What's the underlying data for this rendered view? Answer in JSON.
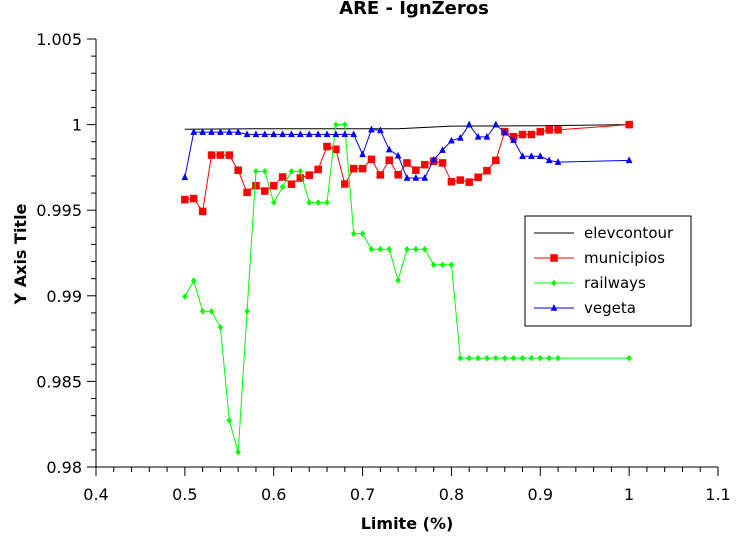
{
  "chart_data": {
    "type": "line",
    "title": "ARE - IgnZeros",
    "xlabel": "Limite (%)",
    "ylabel": "Y Axis Title",
    "xlim": [
      0.4,
      1.1
    ],
    "ylim": [
      0.98,
      1.005
    ],
    "x_ticks": [
      "0.4",
      "0.5",
      "0.6",
      "0.7",
      "0.8",
      "0.9",
      "1",
      "1.1"
    ],
    "y_ticks": [
      "0.98",
      "0.985",
      "0.99",
      "0.995",
      "1",
      "1.005"
    ],
    "grid": false,
    "legend_position": "right",
    "series": [
      {
        "name": "elevcontour",
        "color": "#000000",
        "marker": "none",
        "x": [
          0.5,
          0.58,
          0.7,
          0.74,
          0.8,
          0.9,
          1.0
        ],
        "y": [
          0.99973,
          0.99976,
          0.99976,
          0.99976,
          0.99991,
          0.99993,
          1.0
        ]
      },
      {
        "name": "municipios",
        "color": "#ff0000",
        "marker": "square",
        "x": [
          0.5,
          0.51,
          0.52,
          0.53,
          0.54,
          0.55,
          0.56,
          0.57,
          0.58,
          0.59,
          0.6,
          0.61,
          0.62,
          0.63,
          0.64,
          0.65,
          0.66,
          0.67,
          0.68,
          0.69,
          0.7,
          0.71,
          0.72,
          0.73,
          0.74,
          0.75,
          0.76,
          0.77,
          0.78,
          0.79,
          0.8,
          0.81,
          0.82,
          0.83,
          0.84,
          0.85,
          0.86,
          0.87,
          0.88,
          0.89,
          0.9,
          0.91,
          0.92,
          1.0
        ],
        "y": [
          0.99562,
          0.99568,
          0.99493,
          0.99822,
          0.99822,
          0.99822,
          0.99733,
          0.99604,
          0.99643,
          0.99612,
          0.99643,
          0.99694,
          0.99652,
          0.99688,
          0.99705,
          0.99738,
          0.99872,
          0.99856,
          0.99653,
          0.99743,
          0.99743,
          0.99797,
          0.99706,
          0.99792,
          0.99707,
          0.99776,
          0.99734,
          0.99766,
          0.99786,
          0.99776,
          0.99666,
          0.99676,
          0.99664,
          0.99692,
          0.99731,
          0.99791,
          0.99959,
          0.99929,
          0.99942,
          0.99942,
          0.99959,
          0.99969,
          0.99969,
          1.0
        ]
      },
      {
        "name": "railways",
        "color": "#00ff00",
        "marker": "diamond",
        "x": [
          0.5,
          0.51,
          0.52,
          0.53,
          0.54,
          0.55,
          0.56,
          0.57,
          0.58,
          0.59,
          0.6,
          0.61,
          0.62,
          0.63,
          0.64,
          0.65,
          0.66,
          0.67,
          0.68,
          0.69,
          0.7,
          0.71,
          0.72,
          0.73,
          0.74,
          0.75,
          0.76,
          0.77,
          0.78,
          0.79,
          0.8,
          0.81,
          0.82,
          0.83,
          0.84,
          0.85,
          0.86,
          0.87,
          0.88,
          0.89,
          0.9,
          0.91,
          0.92,
          1.0
        ],
        "y": [
          0.98996,
          0.99089,
          0.98909,
          0.98909,
          0.98816,
          0.98272,
          0.98087,
          0.9891,
          0.99727,
          0.99727,
          0.99545,
          0.99636,
          0.99727,
          0.99727,
          0.99545,
          0.99545,
          0.99545,
          1.0,
          1.0,
          0.99363,
          0.99363,
          0.99272,
          0.99272,
          0.99272,
          0.9909,
          0.99272,
          0.99272,
          0.99272,
          0.99181,
          0.99181,
          0.99181,
          0.98636,
          0.98636,
          0.98636,
          0.98636,
          0.98636,
          0.98636,
          0.98636,
          0.98636,
          0.98636,
          0.98636,
          0.98636,
          0.98636,
          0.98636
        ]
      },
      {
        "name": "vegeta",
        "color": "#0000ff",
        "marker": "triangle",
        "x": [
          0.5,
          0.51,
          0.52,
          0.53,
          0.54,
          0.55,
          0.56,
          0.57,
          0.58,
          0.59,
          0.6,
          0.61,
          0.62,
          0.63,
          0.64,
          0.65,
          0.66,
          0.67,
          0.68,
          0.69,
          0.7,
          0.71,
          0.72,
          0.73,
          0.74,
          0.75,
          0.76,
          0.77,
          0.78,
          0.79,
          0.8,
          0.81,
          0.82,
          0.83,
          0.84,
          0.85,
          0.86,
          0.87,
          0.88,
          0.89,
          0.9,
          0.91,
          0.92,
          1.0
        ],
        "y": [
          0.99692,
          0.99956,
          0.99956,
          0.99956,
          0.99956,
          0.99956,
          0.99956,
          0.99943,
          0.99943,
          0.99943,
          0.99943,
          0.99943,
          0.99943,
          0.99943,
          0.99943,
          0.99943,
          0.99943,
          0.99943,
          0.99943,
          0.99943,
          0.99826,
          0.99971,
          0.99966,
          0.99854,
          0.99818,
          0.99688,
          0.99688,
          0.99688,
          0.99795,
          0.99851,
          0.99906,
          0.99922,
          1.0,
          0.99928,
          0.99928,
          1.0,
          0.99953,
          0.99909,
          0.99815,
          0.99815,
          0.99815,
          0.99791,
          0.99781,
          0.99791
        ]
      }
    ]
  }
}
